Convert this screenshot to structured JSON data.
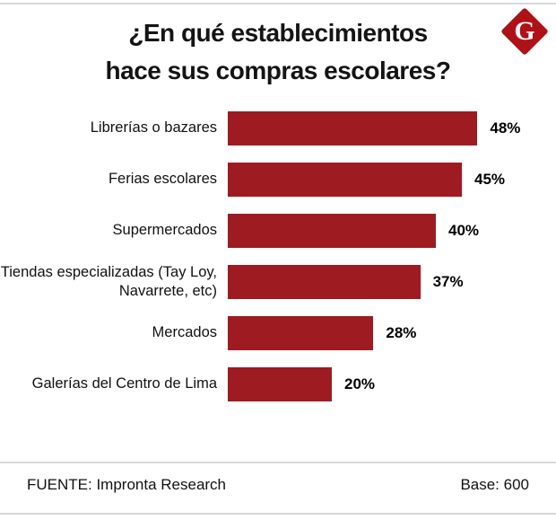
{
  "logo": {
    "letter": "G",
    "color": "#b01117"
  },
  "title": {
    "line1": "¿En qué establecimientos",
    "line2": "hace sus compras escolares?"
  },
  "chart_data": {
    "type": "bar",
    "orientation": "horizontal",
    "title": "¿En qué establecimientos hace sus compras escolares?",
    "categories": [
      "Librerías o bazares",
      "Ferias escolares",
      "Supermercados",
      "Tiendas especializadas (Tay Loy, Navarrete, etc)",
      "Mercados",
      "Galerías del  Centro de Lima"
    ],
    "values": [
      48,
      45,
      40,
      37,
      28,
      20
    ],
    "value_labels": [
      "48%",
      "45%",
      "40%",
      "37%",
      "28%",
      "20%"
    ],
    "xlim": [
      0,
      52
    ],
    "bar_color": "#9e1b21",
    "grid": false,
    "legend": "none"
  },
  "footer": {
    "source": "FUENTE: Impronta Research",
    "base": "Base: 600"
  }
}
